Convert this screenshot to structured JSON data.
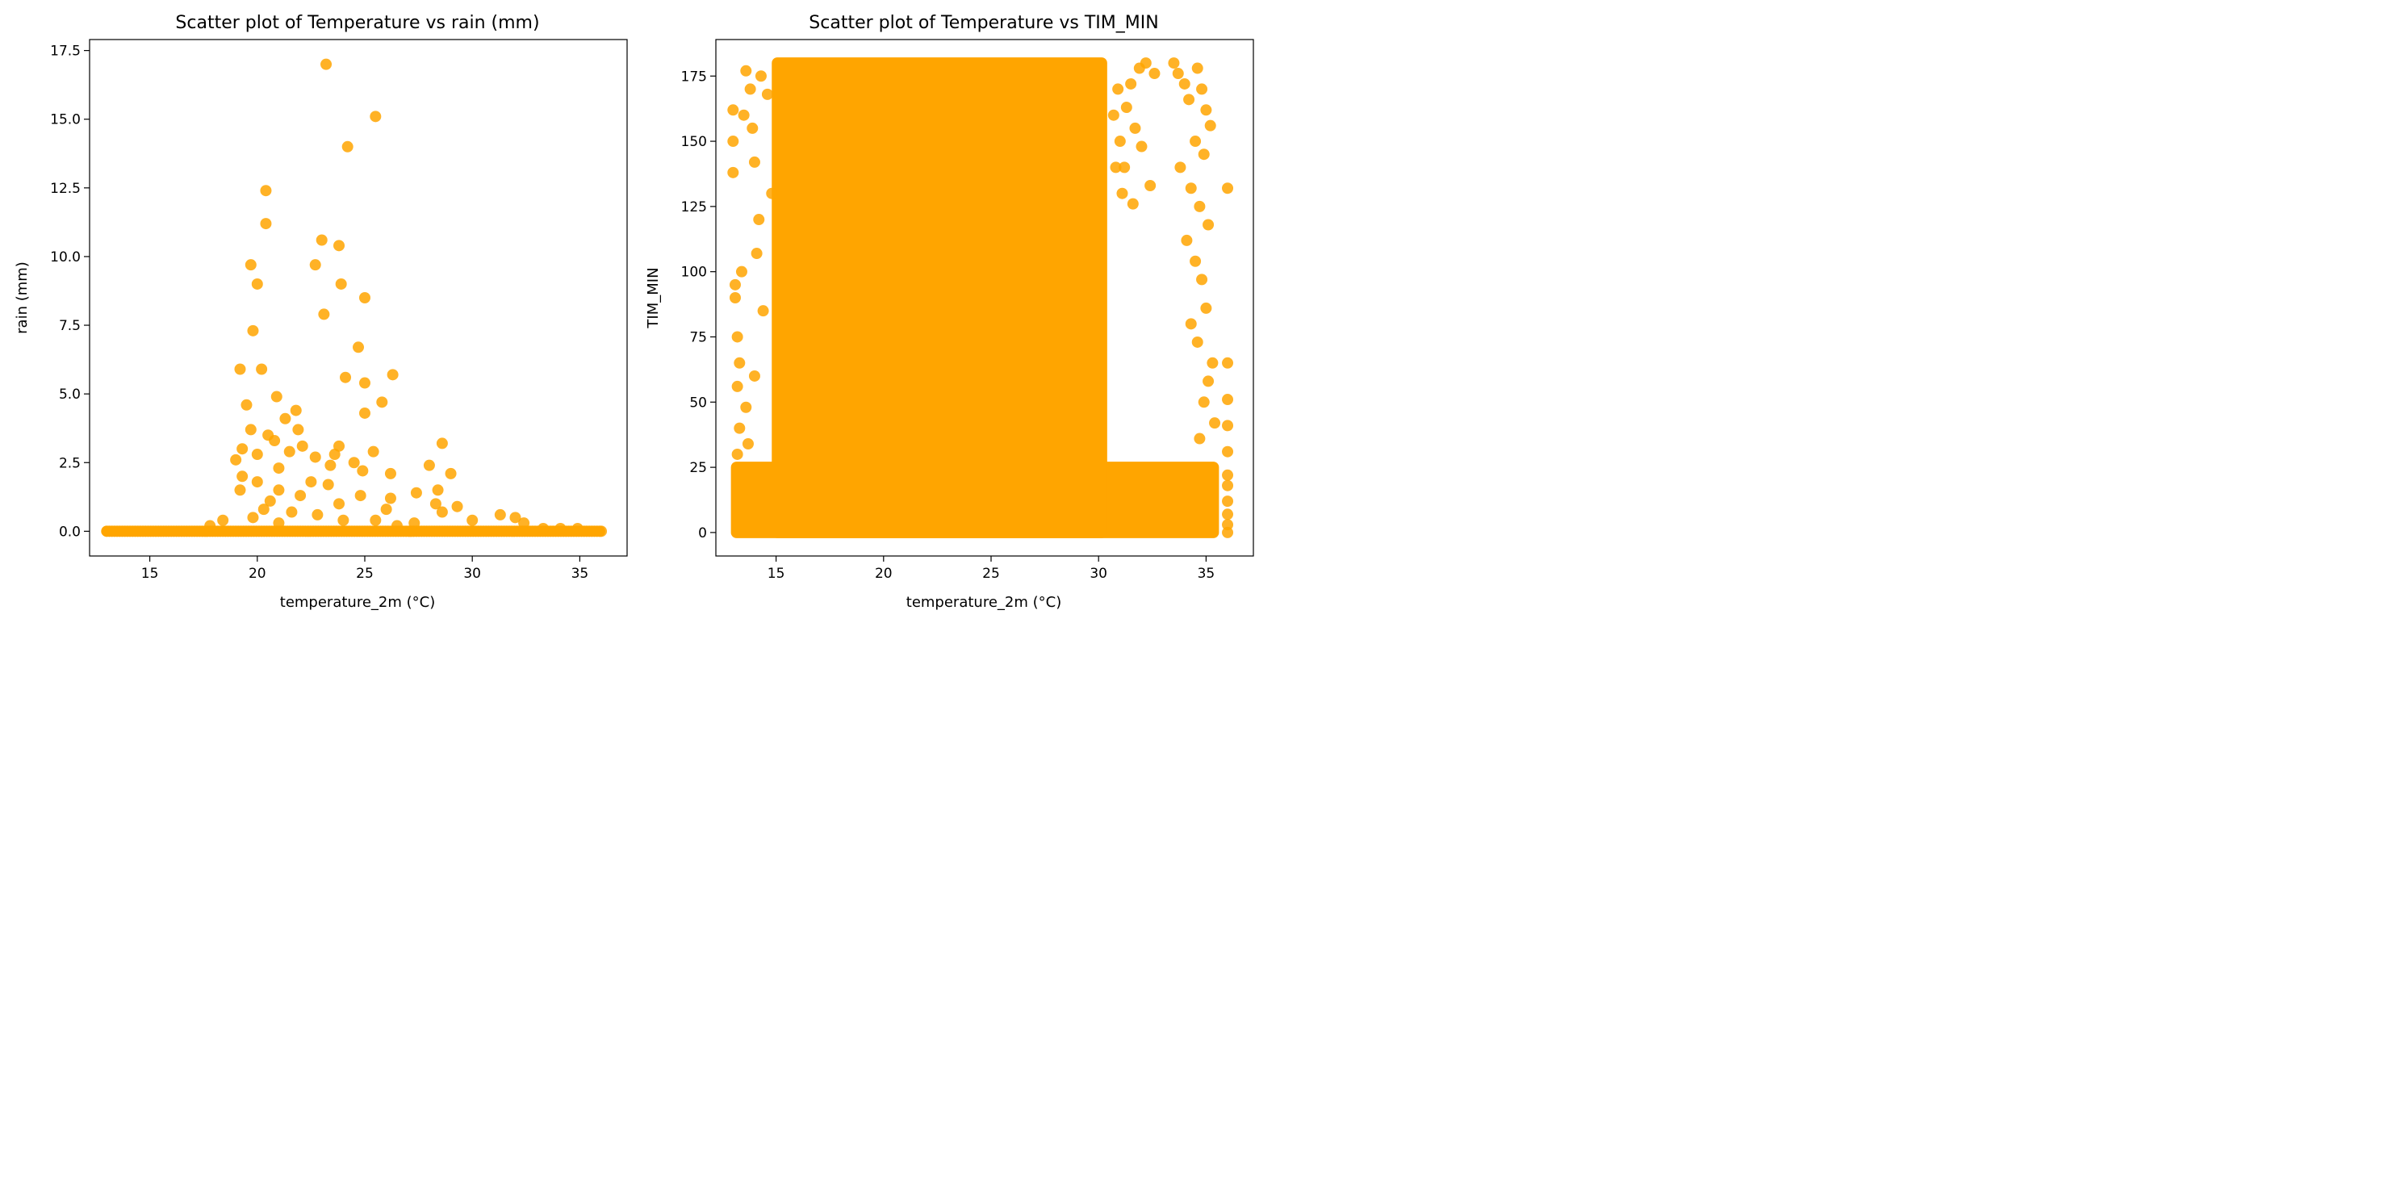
{
  "chart_data": [
    {
      "type": "scatter",
      "title": "Scatter plot of Temperature vs rain (mm)",
      "xlabel": "temperature_2m (°C)",
      "ylabel": "rain (mm)",
      "xlim": [
        12.2,
        37.2
      ],
      "ylim": [
        -0.9,
        17.9
      ],
      "xticks": [
        15,
        20,
        25,
        30,
        35
      ],
      "xtick_labels": [
        "15",
        "20",
        "25",
        "30",
        "35"
      ],
      "yticks": [
        0.0,
        2.5,
        5.0,
        7.5,
        10.0,
        12.5,
        15.0,
        17.5
      ],
      "ytick_labels": [
        "0.0",
        "2.5",
        "5.0",
        "7.5",
        "10.0",
        "12.5",
        "15.0",
        "17.5"
      ],
      "grid": false,
      "color": "#FFA500",
      "points": [
        [
          23.2,
          17.0
        ],
        [
          25.5,
          15.1
        ],
        [
          24.2,
          14.0
        ],
        [
          20.4,
          12.4
        ],
        [
          20.4,
          11.2
        ],
        [
          23.0,
          10.6
        ],
        [
          23.8,
          10.4
        ],
        [
          19.7,
          9.7
        ],
        [
          22.7,
          9.7
        ],
        [
          20.0,
          9.0
        ],
        [
          23.9,
          9.0
        ],
        [
          25.0,
          8.5
        ],
        [
          23.1,
          7.9
        ],
        [
          19.8,
          7.3
        ],
        [
          24.7,
          6.7
        ],
        [
          19.2,
          5.9
        ],
        [
          20.2,
          5.9
        ],
        [
          26.3,
          5.7
        ],
        [
          24.1,
          5.6
        ],
        [
          25.0,
          5.4
        ],
        [
          20.9,
          4.9
        ],
        [
          25.8,
          4.7
        ],
        [
          19.5,
          4.6
        ],
        [
          21.8,
          4.4
        ],
        [
          25.0,
          4.3
        ],
        [
          21.3,
          4.1
        ],
        [
          19.7,
          3.7
        ],
        [
          21.9,
          3.7
        ],
        [
          20.5,
          3.5
        ],
        [
          20.8,
          3.3
        ],
        [
          28.6,
          3.2
        ],
        [
          23.8,
          3.1
        ],
        [
          22.1,
          3.1
        ],
        [
          19.3,
          3.0
        ],
        [
          25.4,
          2.9
        ],
        [
          21.5,
          2.9
        ],
        [
          23.6,
          2.8
        ],
        [
          20.0,
          2.8
        ],
        [
          22.7,
          2.7
        ],
        [
          19.0,
          2.6
        ],
        [
          24.5,
          2.5
        ],
        [
          28.0,
          2.4
        ],
        [
          23.4,
          2.4
        ],
        [
          21.0,
          2.3
        ],
        [
          24.9,
          2.2
        ],
        [
          26.2,
          2.1
        ],
        [
          29.0,
          2.1
        ],
        [
          19.3,
          2.0
        ],
        [
          22.5,
          1.8
        ],
        [
          20.0,
          1.8
        ],
        [
          23.3,
          1.7
        ],
        [
          21.0,
          1.5
        ],
        [
          28.4,
          1.5
        ],
        [
          19.2,
          1.5
        ],
        [
          27.4,
          1.4
        ],
        [
          22.0,
          1.3
        ],
        [
          24.8,
          1.3
        ],
        [
          26.2,
          1.2
        ],
        [
          20.6,
          1.1
        ],
        [
          23.8,
          1.0
        ],
        [
          28.3,
          1.0
        ],
        [
          29.3,
          0.9
        ],
        [
          20.3,
          0.8
        ],
        [
          26.0,
          0.8
        ],
        [
          21.6,
          0.7
        ],
        [
          28.6,
          0.7
        ],
        [
          31.3,
          0.6
        ],
        [
          22.8,
          0.6
        ],
        [
          32.0,
          0.5
        ],
        [
          19.8,
          0.5
        ],
        [
          25.5,
          0.4
        ],
        [
          24.0,
          0.4
        ],
        [
          18.4,
          0.4
        ],
        [
          30.0,
          0.4
        ],
        [
          27.3,
          0.3
        ],
        [
          32.4,
          0.3
        ],
        [
          21.0,
          0.3
        ],
        [
          17.8,
          0.2
        ],
        [
          26.5,
          0.2
        ],
        [
          33.3,
          0.1
        ],
        [
          34.1,
          0.1
        ],
        [
          34.9,
          0.1
        ],
        [
          36.0,
          0.0
        ]
      ]
    },
    {
      "type": "scatter",
      "title": "Scatter plot of Temperature vs TIM_MIN",
      "xlabel": "temperature_2m (°C)",
      "ylabel": "TIM_MIN",
      "xlim": [
        12.2,
        37.2
      ],
      "ylim": [
        -9,
        189
      ],
      "xticks": [
        15,
        20,
        25,
        30,
        35
      ],
      "xtick_labels": [
        "15",
        "20",
        "25",
        "30",
        "35"
      ],
      "yticks": [
        0,
        25,
        50,
        75,
        100,
        125,
        150,
        175
      ],
      "ytick_labels": [
        "0",
        "25",
        "50",
        "75",
        "100",
        "125",
        "150",
        "175"
      ],
      "grid": false,
      "color": "#FFA500",
      "points": [
        [
          13.0,
          162
        ],
        [
          13.0,
          150
        ],
        [
          13.0,
          138
        ],
        [
          13.1,
          95
        ],
        [
          13.1,
          90
        ],
        [
          13.2,
          75
        ],
        [
          13.3,
          65
        ],
        [
          13.2,
          56
        ],
        [
          13.4,
          100
        ],
        [
          13.6,
          177
        ],
        [
          13.5,
          160
        ],
        [
          13.8,
          170
        ],
        [
          13.9,
          155
        ],
        [
          14.0,
          142
        ],
        [
          14.3,
          175
        ],
        [
          14.2,
          120
        ],
        [
          14.1,
          107
        ],
        [
          14.4,
          85
        ],
        [
          14.6,
          168
        ],
        [
          14.8,
          130
        ],
        [
          13.6,
          48
        ],
        [
          13.3,
          40
        ],
        [
          13.7,
          34
        ],
        [
          14.0,
          60
        ],
        [
          13.2,
          30
        ],
        [
          33.5,
          180
        ],
        [
          33.7,
          176
        ],
        [
          34.0,
          172
        ],
        [
          34.2,
          166
        ],
        [
          34.6,
          178
        ],
        [
          34.8,
          170
        ],
        [
          35.0,
          162
        ],
        [
          35.2,
          156
        ],
        [
          34.5,
          150
        ],
        [
          34.9,
          145
        ],
        [
          33.8,
          140
        ],
        [
          34.3,
          132
        ],
        [
          34.7,
          125
        ],
        [
          35.1,
          118
        ],
        [
          34.1,
          112
        ],
        [
          34.5,
          104
        ],
        [
          34.8,
          97
        ],
        [
          35.0,
          86
        ],
        [
          34.3,
          80
        ],
        [
          34.6,
          73
        ],
        [
          35.3,
          65
        ],
        [
          35.1,
          58
        ],
        [
          34.9,
          50
        ],
        [
          35.4,
          42
        ],
        [
          34.7,
          36
        ],
        [
          36.0,
          132
        ],
        [
          36.0,
          65
        ],
        [
          36.0,
          51
        ],
        [
          36.0,
          41
        ],
        [
          36.0,
          31
        ],
        [
          36.0,
          22
        ],
        [
          36.0,
          18
        ],
        [
          36.0,
          12
        ],
        [
          36.0,
          7
        ],
        [
          36.0,
          3
        ],
        [
          36.0,
          0
        ],
        [
          32.2,
          180
        ],
        [
          32.6,
          176
        ],
        [
          31.9,
          178
        ],
        [
          31.5,
          172
        ],
        [
          31.3,
          163
        ],
        [
          31.7,
          155
        ],
        [
          32.0,
          148
        ],
        [
          31.2,
          140
        ],
        [
          32.4,
          133
        ],
        [
          31.6,
          126
        ],
        [
          30.9,
          170
        ],
        [
          30.7,
          160
        ],
        [
          31.0,
          150
        ],
        [
          30.8,
          140
        ],
        [
          31.1,
          130
        ]
      ],
      "dense_region": {
        "x": [
          14.8,
          30.4
        ],
        "y": [
          0,
          180
        ]
      },
      "dense_band": {
        "x": [
          12.9,
          35.6
        ],
        "y": [
          0,
          25
        ]
      }
    }
  ]
}
